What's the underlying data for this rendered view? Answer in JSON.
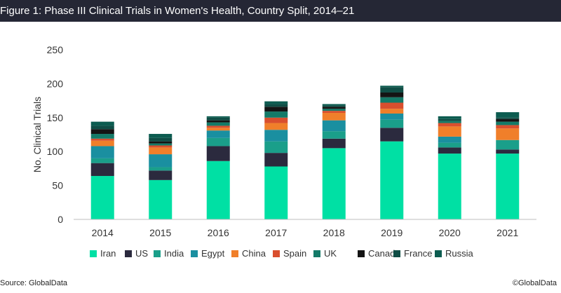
{
  "header": {
    "title": "Figure 1: Phase III Clinical Trials in Women's Health, Country Split, 2014–21"
  },
  "footer": {
    "source": "Source: GlobalData",
    "copyright": "©GlobalData"
  },
  "chart_data": {
    "type": "bar",
    "stacked": true,
    "title": "Figure 1: Phase III Clinical Trials in Women's Health, Country Split, 2014–21",
    "xlabel": "",
    "ylabel": "No. Clinical Trials",
    "ylim": [
      0,
      250
    ],
    "yticks": [
      0,
      50,
      100,
      150,
      200,
      250
    ],
    "grid": false,
    "legend_position": "bottom",
    "categories": [
      "2014",
      "2015",
      "2016",
      "2017",
      "2018",
      "2019",
      "2020",
      "2021"
    ],
    "series": [
      {
        "name": "Iran",
        "color": "#00e0a4",
        "values": [
          64,
          58,
          86,
          78,
          105,
          115,
          97,
          97
        ]
      },
      {
        "name": "US",
        "color": "#2b2a3e",
        "values": [
          19,
          14,
          22,
          20,
          14,
          20,
          9,
          6
        ]
      },
      {
        "name": "India",
        "color": "#1a9f8a",
        "values": [
          7,
          5,
          12,
          17,
          11,
          12,
          7,
          14
        ]
      },
      {
        "name": "Egypt",
        "color": "#1a8fa0",
        "values": [
          18,
          19,
          11,
          17,
          16,
          9,
          9,
          0
        ]
      },
      {
        "name": "China",
        "color": "#f07f2a",
        "values": [
          8,
          10,
          4,
          10,
          11,
          7,
          15,
          17
        ]
      },
      {
        "name": "Spain",
        "color": "#d94f2e",
        "values": [
          3,
          3,
          3,
          8,
          3,
          9,
          5,
          5
        ]
      },
      {
        "name": "UK",
        "color": "#147a68",
        "values": [
          7,
          3,
          5,
          9,
          3,
          8,
          3,
          5
        ]
      },
      {
        "name": "Canada",
        "color": "#141414",
        "values": [
          7,
          3,
          3,
          7,
          3,
          7,
          0,
          4
        ]
      },
      {
        "name": "France",
        "color": "#0f4d45",
        "values": [
          5,
          5,
          4,
          4,
          2,
          8,
          3,
          2
        ]
      },
      {
        "name": "Russia",
        "color": "#0c5c50",
        "values": [
          6,
          6,
          2,
          4,
          2,
          2,
          4,
          8
        ]
      }
    ]
  }
}
